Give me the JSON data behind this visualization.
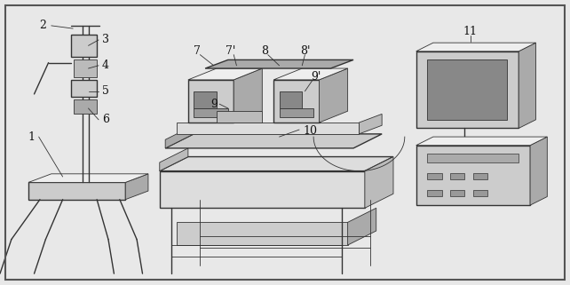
{
  "bg_color": "#e8e8e8",
  "border_color": "#555555",
  "line_color": "#333333",
  "label_color": "#111111",
  "fig_width": 6.42,
  "fig_height": 3.21,
  "dpi": 100,
  "label_fontsize": 9
}
